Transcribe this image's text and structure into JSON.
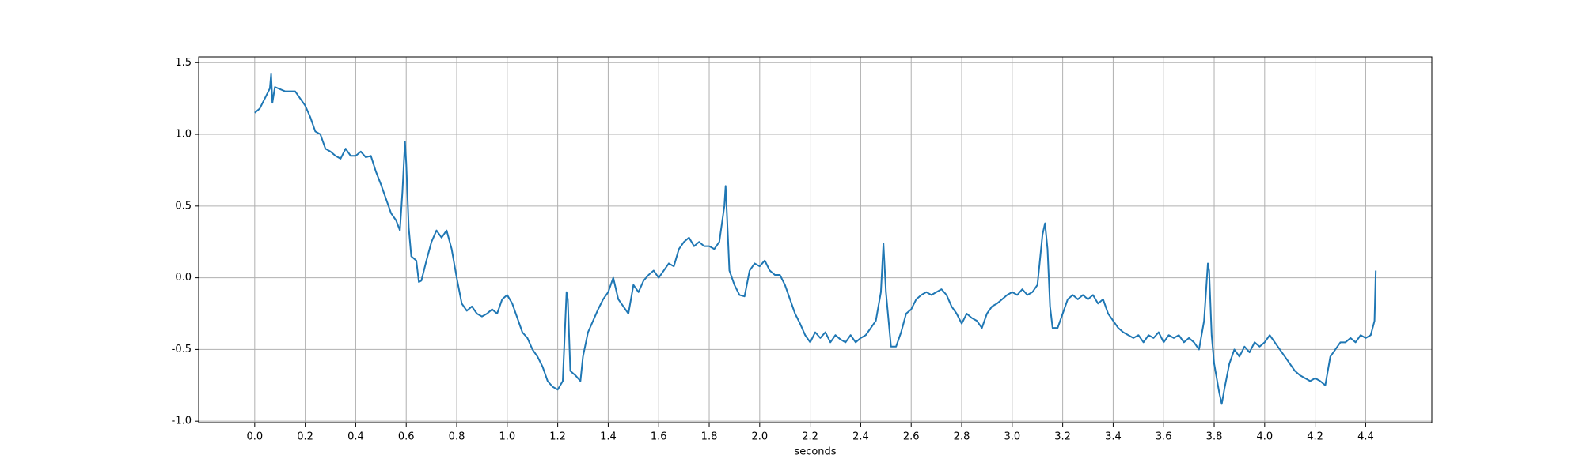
{
  "chart_data": {
    "type": "line",
    "x_label": "seconds",
    "color": "#1f77b4",
    "grid": true,
    "x": [
      0.0,
      0.02,
      0.04,
      0.06,
      0.065,
      0.07,
      0.08,
      0.12,
      0.16,
      0.2,
      0.22,
      0.24,
      0.26,
      0.28,
      0.3,
      0.32,
      0.34,
      0.36,
      0.38,
      0.4,
      0.42,
      0.44,
      0.46,
      0.48,
      0.5,
      0.52,
      0.54,
      0.56,
      0.575,
      0.585,
      0.595,
      0.6,
      0.61,
      0.62,
      0.64,
      0.65,
      0.66,
      0.68,
      0.7,
      0.72,
      0.74,
      0.76,
      0.78,
      0.8,
      0.82,
      0.84,
      0.86,
      0.88,
      0.9,
      0.92,
      0.94,
      0.96,
      0.98,
      1.0,
      1.02,
      1.04,
      1.06,
      1.08,
      1.1,
      1.12,
      1.14,
      1.16,
      1.18,
      1.2,
      1.22,
      1.235,
      1.24,
      1.25,
      1.27,
      1.29,
      1.3,
      1.32,
      1.34,
      1.36,
      1.38,
      1.4,
      1.42,
      1.44,
      1.46,
      1.48,
      1.5,
      1.52,
      1.54,
      1.56,
      1.58,
      1.6,
      1.62,
      1.64,
      1.66,
      1.68,
      1.7,
      1.72,
      1.74,
      1.76,
      1.78,
      1.8,
      1.82,
      1.84,
      1.86,
      1.865,
      1.87,
      1.88,
      1.9,
      1.92,
      1.94,
      1.96,
      1.98,
      2.0,
      2.02,
      2.04,
      2.06,
      2.08,
      2.1,
      2.12,
      2.14,
      2.16,
      2.18,
      2.2,
      2.22,
      2.24,
      2.26,
      2.28,
      2.3,
      2.32,
      2.34,
      2.36,
      2.38,
      2.4,
      2.42,
      2.44,
      2.46,
      2.48,
      2.49,
      2.5,
      2.52,
      2.54,
      2.56,
      2.58,
      2.6,
      2.62,
      2.64,
      2.66,
      2.68,
      2.7,
      2.72,
      2.74,
      2.76,
      2.78,
      2.8,
      2.82,
      2.84,
      2.86,
      2.88,
      2.9,
      2.92,
      2.94,
      2.96,
      2.98,
      3.0,
      3.02,
      3.04,
      3.06,
      3.08,
      3.1,
      3.12,
      3.13,
      3.14,
      3.15,
      3.16,
      3.18,
      3.2,
      3.22,
      3.24,
      3.26,
      3.28,
      3.3,
      3.32,
      3.34,
      3.36,
      3.38,
      3.4,
      3.42,
      3.44,
      3.46,
      3.48,
      3.5,
      3.52,
      3.54,
      3.56,
      3.58,
      3.6,
      3.62,
      3.64,
      3.66,
      3.68,
      3.7,
      3.72,
      3.74,
      3.76,
      3.775,
      3.78,
      3.79,
      3.8,
      3.82,
      3.83,
      3.84,
      3.86,
      3.88,
      3.9,
      3.92,
      3.94,
      3.96,
      3.98,
      4.0,
      4.02,
      4.04,
      4.06,
      4.08,
      4.1,
      4.12,
      4.14,
      4.16,
      4.18,
      4.2,
      4.22,
      4.24,
      4.26,
      4.28,
      4.3,
      4.32,
      4.34,
      4.36,
      4.38,
      4.4,
      4.42,
      4.435,
      4.44
    ],
    "values": [
      1.15,
      1.18,
      1.25,
      1.32,
      1.42,
      1.22,
      1.33,
      1.3,
      1.3,
      1.2,
      1.12,
      1.02,
      1.0,
      0.9,
      0.88,
      0.85,
      0.83,
      0.9,
      0.85,
      0.85,
      0.88,
      0.84,
      0.85,
      0.74,
      0.65,
      0.55,
      0.45,
      0.4,
      0.33,
      0.6,
      0.95,
      0.8,
      0.35,
      0.15,
      0.12,
      -0.03,
      -0.02,
      0.12,
      0.25,
      0.33,
      0.28,
      0.33,
      0.2,
      0.0,
      -0.18,
      -0.23,
      -0.2,
      -0.25,
      -0.27,
      -0.25,
      -0.22,
      -0.25,
      -0.15,
      -0.12,
      -0.18,
      -0.28,
      -0.38,
      -0.42,
      -0.5,
      -0.55,
      -0.62,
      -0.72,
      -0.76,
      -0.78,
      -0.72,
      -0.1,
      -0.15,
      -0.65,
      -0.68,
      -0.72,
      -0.55,
      -0.38,
      -0.3,
      -0.22,
      -0.15,
      -0.1,
      0.0,
      -0.15,
      -0.2,
      -0.25,
      -0.05,
      -0.1,
      -0.02,
      0.02,
      0.05,
      0.0,
      0.05,
      0.1,
      0.08,
      0.2,
      0.25,
      0.28,
      0.22,
      0.25,
      0.22,
      0.22,
      0.2,
      0.25,
      0.5,
      0.64,
      0.45,
      0.05,
      -0.05,
      -0.12,
      -0.13,
      0.05,
      0.1,
      0.08,
      0.12,
      0.05,
      0.02,
      0.02,
      -0.05,
      -0.15,
      -0.25,
      -0.32,
      -0.4,
      -0.45,
      -0.38,
      -0.42,
      -0.38,
      -0.45,
      -0.4,
      -0.43,
      -0.45,
      -0.4,
      -0.45,
      -0.42,
      -0.4,
      -0.35,
      -0.3,
      -0.1,
      0.24,
      -0.1,
      -0.48,
      -0.48,
      -0.38,
      -0.25,
      -0.22,
      -0.15,
      -0.12,
      -0.1,
      -0.12,
      -0.1,
      -0.08,
      -0.12,
      -0.2,
      -0.25,
      -0.32,
      -0.25,
      -0.28,
      -0.3,
      -0.35,
      -0.25,
      -0.2,
      -0.18,
      -0.15,
      -0.12,
      -0.1,
      -0.12,
      -0.08,
      -0.12,
      -0.1,
      -0.05,
      0.3,
      0.38,
      0.2,
      -0.2,
      -0.35,
      -0.35,
      -0.25,
      -0.15,
      -0.12,
      -0.15,
      -0.12,
      -0.15,
      -0.12,
      -0.18,
      -0.15,
      -0.25,
      -0.3,
      -0.35,
      -0.38,
      -0.4,
      -0.42,
      -0.4,
      -0.45,
      -0.4,
      -0.42,
      -0.38,
      -0.45,
      -0.4,
      -0.42,
      -0.4,
      -0.45,
      -0.42,
      -0.45,
      -0.5,
      -0.3,
      0.1,
      0.05,
      -0.4,
      -0.6,
      -0.8,
      -0.88,
      -0.78,
      -0.6,
      -0.5,
      -0.55,
      -0.48,
      -0.52,
      -0.45,
      -0.48,
      -0.45,
      -0.4,
      -0.45,
      -0.5,
      -0.55,
      -0.6,
      -0.65,
      -0.68,
      -0.7,
      -0.72,
      -0.7,
      -0.72,
      -0.75,
      -0.55,
      -0.5,
      -0.45,
      -0.45,
      -0.42,
      -0.45,
      -0.4,
      -0.42,
      -0.4,
      -0.3,
      0.05
    ],
    "xlim": [
      -0.222,
      4.662
    ],
    "xticks": [
      {
        "value": 0,
        "label": "0.0"
      },
      0.2,
      0.4,
      0.6,
      0.8,
      {
        "value": 1,
        "label": "1.0"
      },
      1.2,
      1.4,
      1.6,
      1.8,
      {
        "value": 2,
        "label": "2.0"
      },
      2.2,
      2.4,
      2.6,
      2.8,
      {
        "value": 3,
        "label": "3.0"
      },
      3.2,
      3.4,
      3.6,
      3.8,
      {
        "value": 4,
        "label": "4.0"
      },
      4.2,
      4.4
    ],
    "ylim": [
      -1.01,
      1.54
    ],
    "yticks": [
      {
        "value": -1,
        "label": "-1.0"
      },
      -0.5,
      {
        "value": 0,
        "label": "0.0"
      },
      0.5,
      {
        "value": 1,
        "label": "1.0"
      },
      1.5
    ]
  }
}
